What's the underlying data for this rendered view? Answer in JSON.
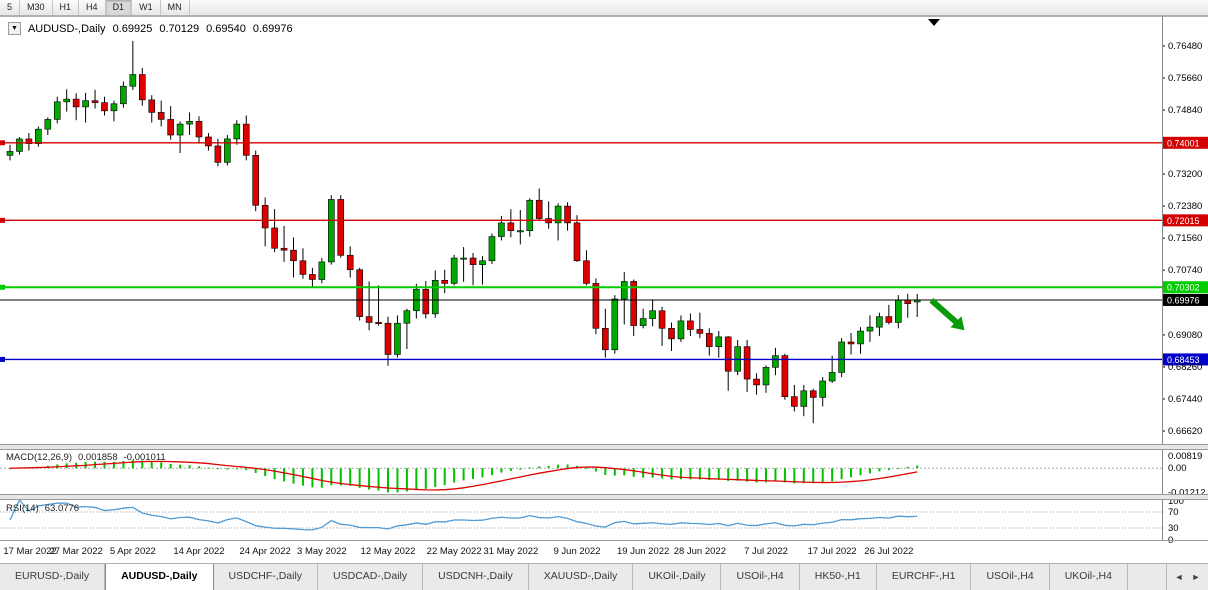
{
  "colors": {
    "candle_up": "#00a800",
    "candle_down": "#dc0000",
    "wick": "#000000",
    "hline_red": "#d20000",
    "hline_green": "#00cc00",
    "hline_blue": "#0000c8",
    "current_price": "#000000",
    "macd_hist": "#00c000",
    "macd_signal": "#e00000",
    "rsi_line": "#4f9bd5",
    "arrow": "#0a9a0a"
  },
  "toolbar": {
    "timeframes": [
      "5",
      "M30",
      "H1",
      "H4",
      "D1",
      "W1",
      "MN"
    ],
    "active": "D1"
  },
  "chart_header": {
    "dropdown_icon": "▼",
    "symbol": "AUDUSD-,Daily",
    "open": "0.69925",
    "high": "0.70129",
    "low": "0.69540",
    "close": "0.69976"
  },
  "macd_panel": {
    "title": "MACD(12,26,9)",
    "value_main": "0.001858",
    "value_signal": "-0.001011",
    "axis_ticks": [
      {
        "text": "0.00819",
        "value": 0.00819
      },
      {
        "text": "0.00",
        "value": 0
      },
      {
        "text": "-0.01212",
        "value": -0.01212
      }
    ]
  },
  "rsi_panel": {
    "title": "RSI(14)",
    "value": "63.0776",
    "levels": [
      70,
      30
    ],
    "axis_ticks": [
      {
        "text": "100",
        "value": 100
      },
      {
        "text": "70",
        "value": 70
      },
      {
        "text": "30",
        "value": 30
      },
      {
        "text": "0",
        "value": 0
      }
    ]
  },
  "tabs": {
    "scroll_left": "◄",
    "scroll_right": "►",
    "items": [
      {
        "label": "EURUSD-,Daily"
      },
      {
        "label": "AUDUSD-,Daily",
        "active": true
      },
      {
        "label": "USDCHF-,Daily"
      },
      {
        "label": "USDCAD-,Daily"
      },
      {
        "label": "USDCNH-,Daily"
      },
      {
        "label": "XAUUSD-,Daily"
      },
      {
        "label": "UKOil-,Daily"
      },
      {
        "label": "USOil-,H4"
      },
      {
        "label": "HK50-,H1"
      },
      {
        "label": "EURCHF-,H1"
      },
      {
        "label": "USOil-,H4"
      },
      {
        "label": "UKOil-,H4"
      }
    ]
  },
  "chart_data": {
    "type": "candlestick",
    "symbol": "AUDUSD-,Daily",
    "timeframe": "Daily",
    "price_axis_ticks": [
      "0.76480",
      "0.75660",
      "0.74840",
      "0.73200",
      "0.72380",
      "0.71560",
      "0.70740",
      "0.69080",
      "0.68260",
      "0.67440",
      "0.66620"
    ],
    "ylim": [
      0.663,
      0.7715
    ],
    "x_ticks": [
      {
        "label": "17 Mar 2022",
        "index": 0
      },
      {
        "label": "27 Mar 2022",
        "index": 7
      },
      {
        "label": "5 Apr 2022",
        "index": 13
      },
      {
        "label": "14 Apr 2022",
        "index": 20
      },
      {
        "label": "24 Apr 2022",
        "index": 27
      },
      {
        "label": "3 May 2022",
        "index": 33
      },
      {
        "label": "12 May 2022",
        "index": 40
      },
      {
        "label": "22 May 2022",
        "index": 47
      },
      {
        "label": "31 May 2022",
        "index": 53
      },
      {
        "label": "9 Jun 2022",
        "index": 60
      },
      {
        "label": "19 Jun 2022",
        "index": 67
      },
      {
        "label": "28 Jun 2022",
        "index": 73
      },
      {
        "label": "7 Jul 2022",
        "index": 80
      },
      {
        "label": "17 Jul 2022",
        "index": 87
      },
      {
        "label": "26 Jul 2022",
        "index": 93
      }
    ],
    "hlines": [
      {
        "value": 0.74001,
        "label": "0.74001",
        "color_key": "hline_red"
      },
      {
        "value": 0.72015,
        "label": "0.72015",
        "color_key": "hline_red"
      },
      {
        "value": 0.70302,
        "label": "0.70302",
        "color_key": "hline_green"
      },
      {
        "value": 0.68453,
        "label": "0.68453",
        "color_key": "hline_blue"
      }
    ],
    "current_price": {
      "value": 0.69976,
      "label": "0.69976"
    },
    "annotation_arrow": {
      "from_index": 97.5,
      "from_price": 0.6997,
      "to_index": 101,
      "to_price": 0.692
    },
    "candles": [
      [
        0.7368,
        0.7395,
        0.7355,
        0.7378
      ],
      [
        0.7378,
        0.7415,
        0.737,
        0.741
      ],
      [
        0.741,
        0.7425,
        0.738,
        0.7398
      ],
      [
        0.7398,
        0.7442,
        0.739,
        0.7435
      ],
      [
        0.7435,
        0.7465,
        0.742,
        0.746
      ],
      [
        0.746,
        0.7518,
        0.745,
        0.7505
      ],
      [
        0.7505,
        0.7537,
        0.748,
        0.7512
      ],
      [
        0.7512,
        0.7527,
        0.7458,
        0.7492
      ],
      [
        0.7492,
        0.7528,
        0.7452,
        0.7508
      ],
      [
        0.7508,
        0.7536,
        0.7488,
        0.7503
      ],
      [
        0.7503,
        0.7518,
        0.747,
        0.7482
      ],
      [
        0.7482,
        0.7508,
        0.7455,
        0.75
      ],
      [
        0.75,
        0.7557,
        0.749,
        0.7545
      ],
      [
        0.7545,
        0.7661,
        0.7535,
        0.7575
      ],
      [
        0.7575,
        0.7592,
        0.7495,
        0.751
      ],
      [
        0.751,
        0.7522,
        0.7452,
        0.7478
      ],
      [
        0.7478,
        0.7508,
        0.7442,
        0.746
      ],
      [
        0.746,
        0.7494,
        0.7408,
        0.742
      ],
      [
        0.742,
        0.7455,
        0.7374,
        0.7448
      ],
      [
        0.7448,
        0.7478,
        0.742,
        0.7455
      ],
      [
        0.7455,
        0.7468,
        0.7398,
        0.7415
      ],
      [
        0.7415,
        0.7425,
        0.738,
        0.7392
      ],
      [
        0.7392,
        0.741,
        0.734,
        0.735
      ],
      [
        0.735,
        0.742,
        0.7342,
        0.741
      ],
      [
        0.741,
        0.7458,
        0.7395,
        0.7448
      ],
      [
        0.7448,
        0.747,
        0.7355,
        0.7368
      ],
      [
        0.7368,
        0.738,
        0.7225,
        0.724
      ],
      [
        0.724,
        0.726,
        0.7135,
        0.7182
      ],
      [
        0.7182,
        0.723,
        0.712,
        0.713
      ],
      [
        0.713,
        0.7187,
        0.7095,
        0.7125
      ],
      [
        0.7125,
        0.7158,
        0.7055,
        0.7098
      ],
      [
        0.7098,
        0.713,
        0.7052,
        0.7063
      ],
      [
        0.7063,
        0.708,
        0.7029,
        0.705
      ],
      [
        0.705,
        0.7105,
        0.704,
        0.7095
      ],
      [
        0.7095,
        0.7266,
        0.7088,
        0.7255
      ],
      [
        0.7255,
        0.7266,
        0.7106,
        0.7112
      ],
      [
        0.7112,
        0.7135,
        0.7055,
        0.7075
      ],
      [
        0.7075,
        0.708,
        0.6945,
        0.6955
      ],
      [
        0.6955,
        0.7045,
        0.692,
        0.694
      ],
      [
        0.694,
        0.7035,
        0.6932,
        0.6938
      ],
      [
        0.6938,
        0.6955,
        0.6829,
        0.6858
      ],
      [
        0.6858,
        0.6958,
        0.685,
        0.6938
      ],
      [
        0.6938,
        0.6975,
        0.6872,
        0.697
      ],
      [
        0.697,
        0.7039,
        0.695,
        0.7025
      ],
      [
        0.7025,
        0.7046,
        0.695,
        0.6962
      ],
      [
        0.6962,
        0.7073,
        0.6952,
        0.7048
      ],
      [
        0.7048,
        0.7075,
        0.7015,
        0.704
      ],
      [
        0.704,
        0.7113,
        0.7035,
        0.7105
      ],
      [
        0.7105,
        0.7133,
        0.7044,
        0.7105
      ],
      [
        0.7105,
        0.7118,
        0.7035,
        0.7088
      ],
      [
        0.7088,
        0.711,
        0.7037,
        0.7098
      ],
      [
        0.7098,
        0.7168,
        0.709,
        0.716
      ],
      [
        0.716,
        0.7213,
        0.715,
        0.7195
      ],
      [
        0.7195,
        0.723,
        0.7158,
        0.7175
      ],
      [
        0.7175,
        0.7228,
        0.714,
        0.7175
      ],
      [
        0.7175,
        0.7258,
        0.716,
        0.7253
      ],
      [
        0.7253,
        0.7283,
        0.72,
        0.7206
      ],
      [
        0.7206,
        0.725,
        0.718,
        0.7195
      ],
      [
        0.7195,
        0.7245,
        0.715,
        0.7238
      ],
      [
        0.7238,
        0.7248,
        0.7175,
        0.7195
      ],
      [
        0.7195,
        0.7215,
        0.7095,
        0.7098
      ],
      [
        0.7098,
        0.7125,
        0.7035,
        0.704
      ],
      [
        0.704,
        0.7053,
        0.691,
        0.6925
      ],
      [
        0.6925,
        0.6975,
        0.685,
        0.687
      ],
      [
        0.687,
        0.701,
        0.686,
        0.7
      ],
      [
        0.7,
        0.7069,
        0.6935,
        0.7045
      ],
      [
        0.7045,
        0.705,
        0.6905,
        0.6932
      ],
      [
        0.6932,
        0.6975,
        0.6925,
        0.695
      ],
      [
        0.695,
        0.6997,
        0.693,
        0.697
      ],
      [
        0.697,
        0.698,
        0.688,
        0.6925
      ],
      [
        0.6925,
        0.694,
        0.6867,
        0.6898
      ],
      [
        0.6898,
        0.6958,
        0.689,
        0.6944
      ],
      [
        0.6944,
        0.6963,
        0.6905,
        0.6922
      ],
      [
        0.6922,
        0.6965,
        0.69,
        0.6912
      ],
      [
        0.6912,
        0.6925,
        0.6855,
        0.6878
      ],
      [
        0.6878,
        0.6918,
        0.685,
        0.6903
      ],
      [
        0.6903,
        0.6905,
        0.6765,
        0.6815
      ],
      [
        0.6815,
        0.6895,
        0.6805,
        0.6878
      ],
      [
        0.6878,
        0.6895,
        0.6762,
        0.6795
      ],
      [
        0.6795,
        0.681,
        0.6755,
        0.678
      ],
      [
        0.678,
        0.683,
        0.676,
        0.6825
      ],
      [
        0.6825,
        0.6875,
        0.6805,
        0.6855
      ],
      [
        0.6855,
        0.686,
        0.6742,
        0.675
      ],
      [
        0.675,
        0.678,
        0.6712,
        0.6725
      ],
      [
        0.6725,
        0.678,
        0.67,
        0.6765
      ],
      [
        0.6765,
        0.677,
        0.6682,
        0.6748
      ],
      [
        0.6748,
        0.68,
        0.6725,
        0.679
      ],
      [
        0.679,
        0.6855,
        0.6785,
        0.6812
      ],
      [
        0.6812,
        0.69,
        0.68,
        0.689
      ],
      [
        0.689,
        0.6913,
        0.6858,
        0.6885
      ],
      [
        0.6885,
        0.6928,
        0.686,
        0.6918
      ],
      [
        0.6918,
        0.6958,
        0.689,
        0.6928
      ],
      [
        0.6928,
        0.6965,
        0.6905,
        0.6955
      ],
      [
        0.6955,
        0.6985,
        0.6935,
        0.694
      ],
      [
        0.694,
        0.701,
        0.6925,
        0.6998
      ],
      [
        0.6998,
        0.7013,
        0.6952,
        0.6988
      ],
      [
        0.69925,
        0.70129,
        0.6954,
        0.69976
      ]
    ]
  }
}
